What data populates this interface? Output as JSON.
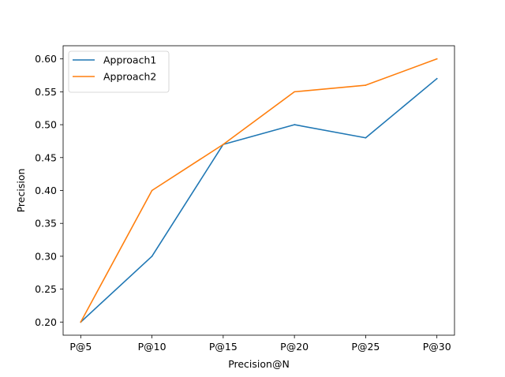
{
  "chart_data": {
    "type": "line",
    "title": "",
    "xlabel": "Precision@N",
    "ylabel": "Precision",
    "categories": [
      "P@5",
      "P@10",
      "P@15",
      "P@20",
      "P@25",
      "P@30"
    ],
    "series": [
      {
        "name": "Approach1",
        "color": "#1f77b4",
        "values": [
          0.2,
          0.3,
          0.47,
          0.5,
          0.48,
          0.57
        ]
      },
      {
        "name": "Approach2",
        "color": "#ff7f0e",
        "values": [
          0.2,
          0.4,
          0.47,
          0.55,
          0.56,
          0.6
        ]
      }
    ],
    "ylim": [
      0.18,
      0.62
    ],
    "yticks": [
      "0.20",
      "0.25",
      "0.30",
      "0.35",
      "0.40",
      "0.45",
      "0.50",
      "0.55",
      "0.60"
    ],
    "grid": false,
    "legend": "upper-left"
  }
}
